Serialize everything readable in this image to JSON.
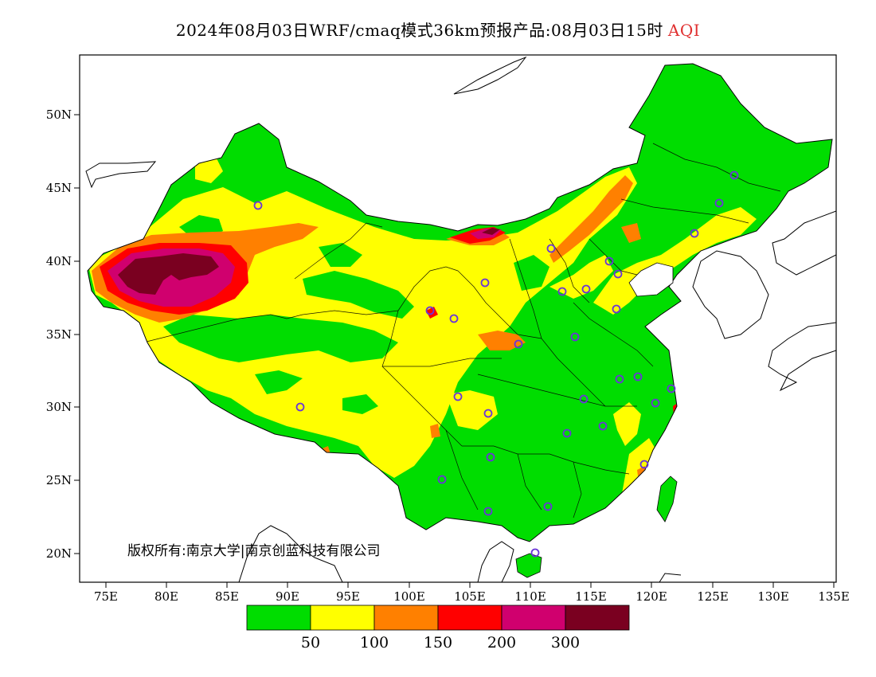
{
  "title": {
    "main": "2024年08月03日WRF/cmaq模式36km预报产品:08月03日15时",
    "variable": "AQI",
    "variable_color": "#e03030"
  },
  "map": {
    "lon_range": [
      73,
      135
    ],
    "lat_range": [
      18,
      54
    ],
    "x_ticks": [
      "75E",
      "80E",
      "85E",
      "90E",
      "95E",
      "100E",
      "105E",
      "110E",
      "115E",
      "120E",
      "125E",
      "130E",
      "135E"
    ],
    "y_ticks": [
      "20N",
      "25N",
      "30N",
      "35N",
      "40N",
      "45N",
      "50N"
    ],
    "copyright": "版权所有:南京大学|南京创蓝科技有限公司"
  },
  "legend": {
    "colors": [
      "#00dd00",
      "#ffff00",
      "#ff8000",
      "#ff0000",
      "#d0006e",
      "#7a0020"
    ],
    "labels": [
      "50",
      "100",
      "150",
      "200",
      "300"
    ]
  }
}
